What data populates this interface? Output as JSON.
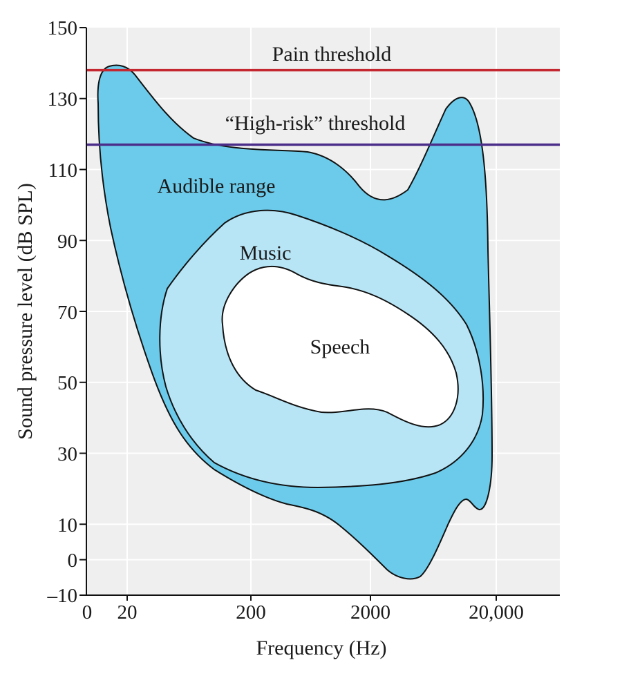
{
  "chart_data": {
    "type": "area",
    "xlabel": "Frequency (Hz)",
    "ylabel": "Sound pressure level (dB SPL)",
    "x_scale": "log",
    "x_ticks": [
      "0",
      "20",
      "200",
      "2000",
      "20,000"
    ],
    "y_ticks": [
      "150",
      "130",
      "110",
      "90",
      "70",
      "50",
      "30",
      "10",
      "0",
      "–10"
    ],
    "ylim": [
      -10,
      150
    ],
    "grid": true,
    "thresholds": [
      {
        "name": "Pain threshold",
        "value": 138,
        "color": "#c4272f"
      },
      {
        "name": "“High-risk” threshold",
        "value": 117,
        "color": "#4b2e8a"
      }
    ],
    "regions": [
      {
        "name": "Audible range",
        "color": "#6ccbea"
      },
      {
        "name": "Music",
        "color": "#b8e5f6"
      },
      {
        "name": "Speech",
        "color": "#ffffff"
      }
    ],
    "colors": {
      "plot_background": "#efefef",
      "gridline": "#ffffff",
      "outline": "#111111"
    }
  }
}
